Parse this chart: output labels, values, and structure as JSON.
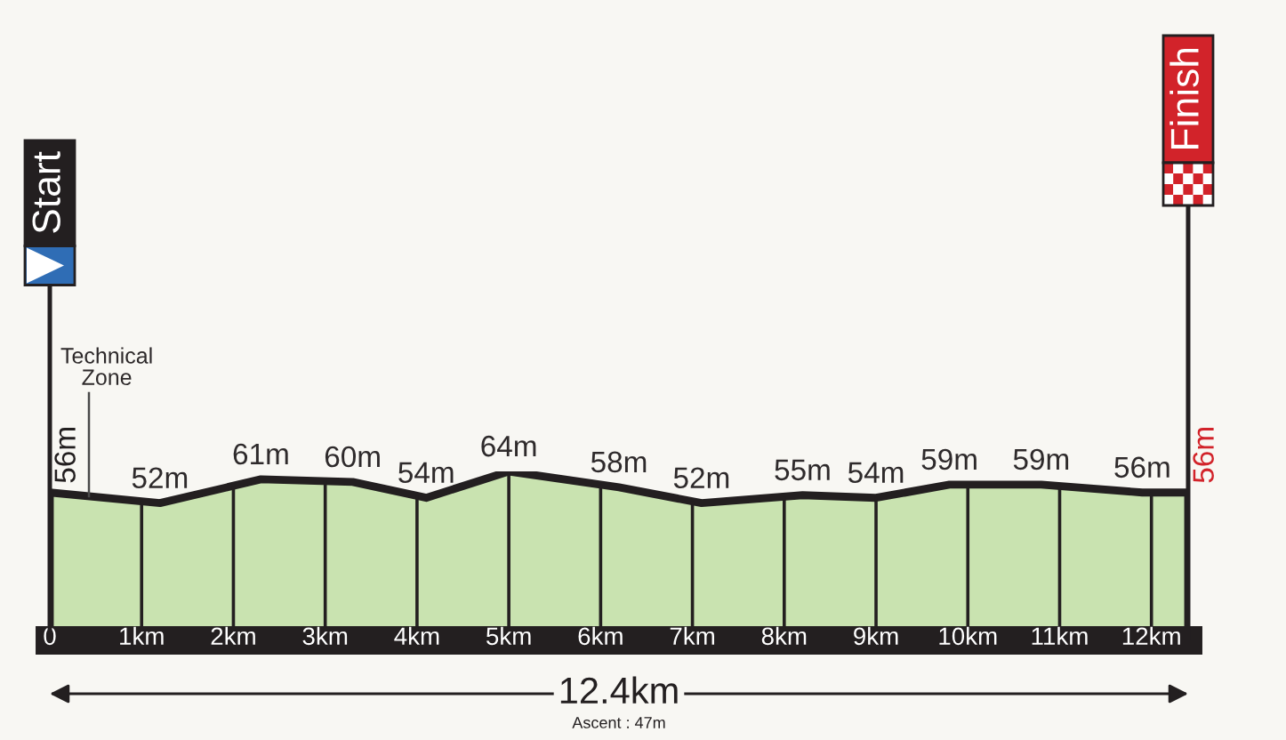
{
  "chart_data": {
    "type": "area",
    "x": [
      0,
      1.2,
      2.3,
      3.3,
      4.1,
      5.0,
      6.2,
      7.1,
      8.2,
      9.0,
      9.8,
      10.8,
      11.9,
      12.4
    ],
    "series": [
      {
        "color": "#c9e3b0",
        "values": [
          56,
          52,
          61,
          60,
          54,
          64,
          58,
          52,
          55,
          54,
          59,
          59,
          56,
          56
        ],
        "value_labels": [
          "56m",
          "52m",
          "61m",
          "60m",
          "54m",
          "64m",
          "58m",
          "52m",
          "55m",
          "54m",
          "59m",
          "59m",
          "56m",
          "56m"
        ]
      }
    ],
    "xlim": [
      0,
      12.4
    ],
    "xticks": [
      0,
      {
        "value": 1,
        "label": "1km"
      },
      {
        "value": 2,
        "label": "2km"
      },
      {
        "value": 3,
        "label": "3km"
      },
      {
        "value": 4,
        "label": "4km"
      },
      {
        "value": 5,
        "label": "5km"
      },
      {
        "value": 6,
        "label": "6km"
      },
      {
        "value": 7,
        "label": "7km"
      },
      {
        "value": 8,
        "label": "8km"
      },
      {
        "value": 9,
        "label": "9km"
      },
      {
        "value": 10,
        "label": "10km"
      },
      {
        "value": 11,
        "label": "11km"
      },
      {
        "value": 12,
        "label": "12km"
      }
    ],
    "tick_labels": "x",
    "grid": "x",
    "ref_lines": [
      {
        "axis": "x",
        "value": 0,
        "label": "Start"
      },
      {
        "axis": "x",
        "value": 12.4,
        "label": "Finish"
      }
    ],
    "annotations": [
      "Technical\nZone",
      "12.4km",
      "Ascent : 47m"
    ]
  }
}
